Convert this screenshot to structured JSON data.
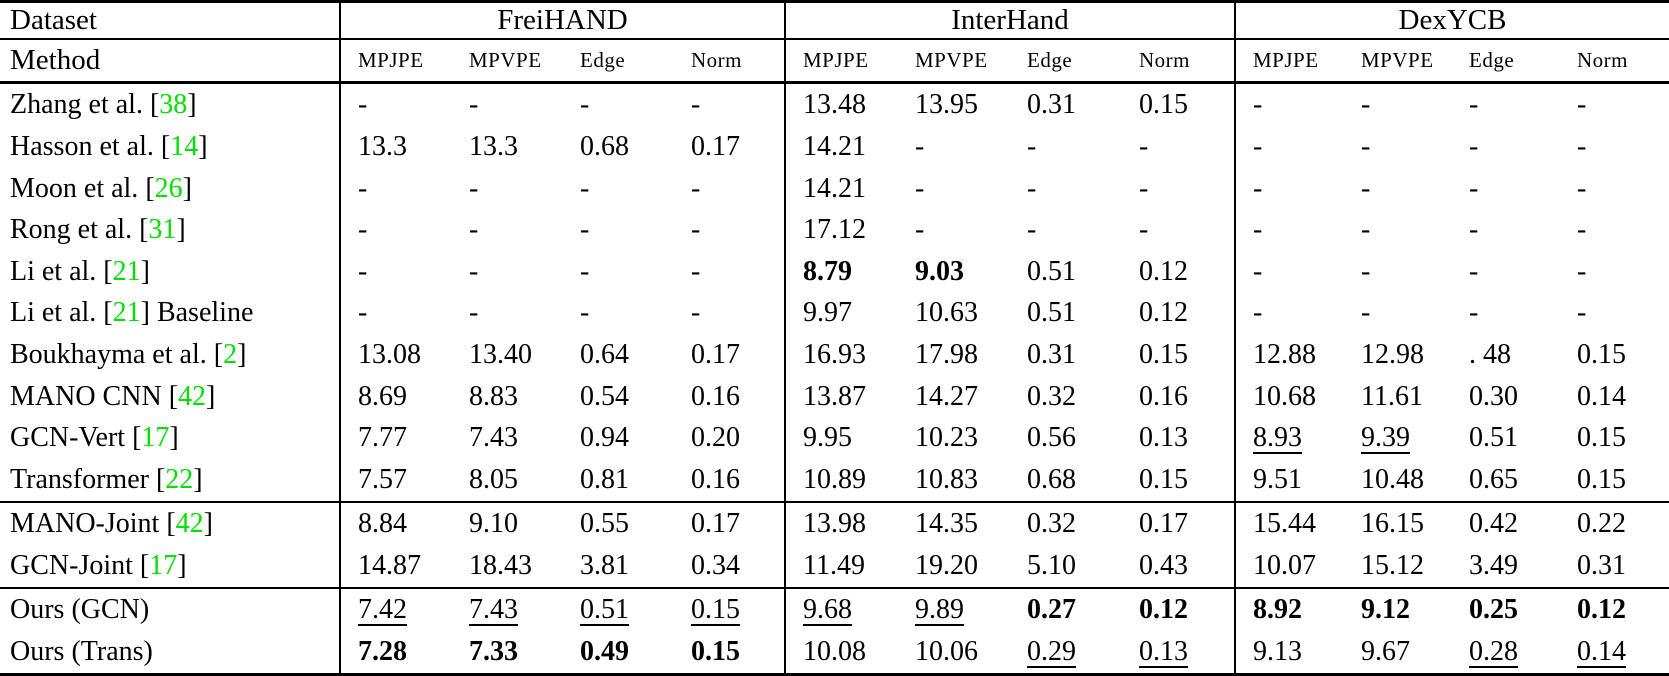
{
  "table": {
    "citation_color": "#00e000",
    "corner_top": "Dataset",
    "corner_bottom": "Method",
    "datasets": [
      "FreiHAND",
      "InterHand",
      "DexYCB"
    ],
    "metrics": [
      "MPJPE",
      "MPVPE",
      "Edge",
      "Norm"
    ],
    "rows": [
      {
        "method_pre": "Zhang et al. ",
        "cite": "38",
        "method_post": "",
        "section_start": false,
        "values": [
          "-",
          "-",
          "-",
          "-",
          "13.48",
          "13.95",
          "0.31",
          "0.15",
          "-",
          "-",
          "-",
          "-"
        ],
        "styles": [
          "p",
          "p",
          "p",
          "p",
          "p",
          "p",
          "p",
          "p",
          "p",
          "p",
          "p",
          "p"
        ]
      },
      {
        "method_pre": "Hasson et al. ",
        "cite": "14",
        "method_post": "",
        "section_start": false,
        "values": [
          "13.3",
          "13.3",
          "0.68",
          "0.17",
          "14.21",
          "-",
          "-",
          "-",
          "-",
          "-",
          "-",
          "-"
        ],
        "styles": [
          "p",
          "p",
          "p",
          "p",
          "p",
          "p",
          "p",
          "p",
          "p",
          "p",
          "p",
          "p"
        ]
      },
      {
        "method_pre": "Moon et al. ",
        "cite": "26",
        "method_post": "",
        "section_start": false,
        "values": [
          "-",
          "-",
          "-",
          "-",
          "14.21",
          "-",
          "-",
          "-",
          "-",
          "-",
          "-",
          "-"
        ],
        "styles": [
          "p",
          "p",
          "p",
          "p",
          "p",
          "p",
          "p",
          "p",
          "p",
          "p",
          "p",
          "p"
        ]
      },
      {
        "method_pre": "Rong et al. ",
        "cite": "31",
        "method_post": "",
        "section_start": false,
        "values": [
          "-",
          "-",
          "-",
          "-",
          "17.12",
          "-",
          "-",
          "-",
          "-",
          "-",
          "-",
          "-"
        ],
        "styles": [
          "p",
          "p",
          "p",
          "p",
          "p",
          "p",
          "p",
          "p",
          "p",
          "p",
          "p",
          "p"
        ]
      },
      {
        "method_pre": "Li et al. ",
        "cite": "21",
        "method_post": "",
        "section_start": false,
        "values": [
          "-",
          "-",
          "-",
          "-",
          "8.79",
          "9.03",
          "0.51",
          "0.12",
          "-",
          "-",
          "-",
          "-"
        ],
        "styles": [
          "p",
          "p",
          "p",
          "p",
          "b",
          "b",
          "p",
          "p",
          "p",
          "p",
          "p",
          "p"
        ]
      },
      {
        "method_pre": "Li et al. ",
        "cite": "21",
        "method_post": " Baseline",
        "section_start": false,
        "values": [
          "-",
          "-",
          "-",
          "-",
          "9.97",
          "10.63",
          "0.51",
          "0.12",
          "-",
          "-",
          "-",
          "-"
        ],
        "styles": [
          "p",
          "p",
          "p",
          "p",
          "p",
          "p",
          "p",
          "p",
          "p",
          "p",
          "p",
          "p"
        ]
      },
      {
        "method_pre": "Boukhayma et al. ",
        "cite": "2",
        "method_post": "",
        "section_start": false,
        "values": [
          "13.08",
          "13.40",
          "0.64",
          "0.17",
          "16.93",
          "17.98",
          "0.31",
          "0.15",
          "12.88",
          "12.98",
          ". 48",
          "0.15"
        ],
        "styles": [
          "p",
          "p",
          "p",
          "p",
          "p",
          "p",
          "p",
          "p",
          "p",
          "p",
          "p",
          "p"
        ]
      },
      {
        "method_pre": "MANO CNN ",
        "cite": "42",
        "method_post": "",
        "section_start": false,
        "values": [
          "8.69",
          "8.83",
          "0.54",
          "0.16",
          "13.87",
          "14.27",
          "0.32",
          "0.16",
          "10.68",
          "11.61",
          "0.30",
          "0.14"
        ],
        "styles": [
          "p",
          "p",
          "p",
          "p",
          "p",
          "p",
          "p",
          "p",
          "p",
          "p",
          "p",
          "p"
        ]
      },
      {
        "method_pre": "GCN-Vert ",
        "cite": "17",
        "method_post": "",
        "section_start": false,
        "values": [
          "7.77",
          "7.43",
          "0.94",
          "0.20",
          "9.95",
          "10.23",
          "0.56",
          "0.13",
          "8.93",
          "9.39",
          "0.51",
          "0.15"
        ],
        "styles": [
          "p",
          "p",
          "p",
          "p",
          "p",
          "p",
          "p",
          "p",
          "u",
          "u",
          "p",
          "p"
        ]
      },
      {
        "method_pre": "Transformer ",
        "cite": "22",
        "method_post": "",
        "section_start": false,
        "values": [
          "7.57",
          "8.05",
          "0.81",
          "0.16",
          "10.89",
          "10.83",
          "0.68",
          "0.15",
          "9.51",
          "10.48",
          "0.65",
          "0.15"
        ],
        "styles": [
          "p",
          "p",
          "p",
          "p",
          "p",
          "p",
          "p",
          "p",
          "p",
          "p",
          "p",
          "p"
        ]
      },
      {
        "method_pre": "MANO-Joint ",
        "cite": "42",
        "method_post": "",
        "section_start": true,
        "values": [
          "8.84",
          "9.10",
          "0.55",
          "0.17",
          "13.98",
          "14.35",
          "0.32",
          "0.17",
          "15.44",
          "16.15",
          "0.42",
          "0.22"
        ],
        "styles": [
          "p",
          "p",
          "p",
          "p",
          "p",
          "p",
          "p",
          "p",
          "p",
          "p",
          "p",
          "p"
        ]
      },
      {
        "method_pre": "GCN-Joint ",
        "cite": "17",
        "method_post": "",
        "section_start": false,
        "values": [
          "14.87",
          "18.43",
          "3.81",
          "0.34",
          "11.49",
          "19.20",
          "5.10",
          "0.43",
          "10.07",
          "15.12",
          "3.49",
          "0.31"
        ],
        "styles": [
          "p",
          "p",
          "p",
          "p",
          "p",
          "p",
          "p",
          "p",
          "p",
          "p",
          "p",
          "p"
        ]
      },
      {
        "method_pre": "Ours (GCN)",
        "cite": "",
        "method_post": "",
        "section_start": true,
        "values": [
          "7.42",
          "7.43",
          "0.51",
          "0.15",
          "9.68",
          "9.89",
          "0.27",
          "0.12",
          "8.92",
          "9.12",
          "0.25",
          "0.12"
        ],
        "styles": [
          "u",
          "u",
          "u",
          "u",
          "u",
          "u",
          "b",
          "b",
          "b",
          "b",
          "b",
          "b"
        ]
      },
      {
        "method_pre": "Ours (Trans)",
        "cite": "",
        "method_post": "",
        "section_start": false,
        "values": [
          "7.28",
          "7.33",
          "0.49",
          "0.15",
          "10.08",
          "10.06",
          "0.29",
          "0.13",
          "9.13",
          "9.67",
          "0.28",
          "0.14"
        ],
        "styles": [
          "b",
          "b",
          "b",
          "b",
          "p",
          "p",
          "u",
          "u",
          "p",
          "p",
          "u",
          "u"
        ]
      }
    ]
  }
}
